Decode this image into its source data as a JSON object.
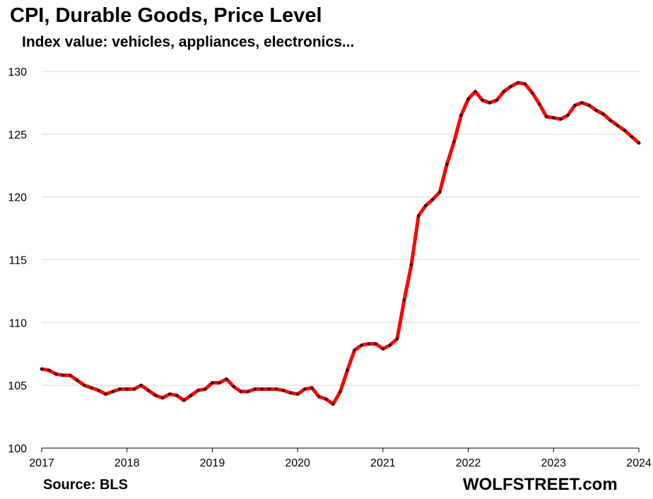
{
  "chart_data": {
    "type": "line",
    "title": "CPI, Durable Goods, Price Level",
    "subtitle": "Index value: vehicles, appliances,  electronics...",
    "source": "Source: BLS",
    "brand": "WOLFSTREET.com",
    "ylim": [
      100,
      130
    ],
    "yticks": [
      100,
      105,
      110,
      115,
      120,
      125,
      130
    ],
    "xlim": [
      2017,
      2024
    ],
    "xticks": [
      2017,
      2018,
      2019,
      2020,
      2021,
      2022,
      2023,
      2024
    ],
    "grid": true,
    "colors": {
      "line": "#ff0000",
      "marker": "#1a1a1a",
      "grid": "#d9d9d9",
      "axis": "#000000"
    },
    "series": [
      {
        "start": "2017-01",
        "values": [
          106.3,
          106.2,
          105.9,
          105.8,
          105.8,
          105.4,
          105.0,
          104.8,
          104.6,
          104.3,
          104.5,
          104.7,
          104.7,
          104.7,
          105.0,
          104.6,
          104.2,
          104.0,
          104.3,
          104.2,
          103.8,
          104.2,
          104.6,
          104.7,
          105.2,
          105.2,
          105.5,
          104.9,
          104.5,
          104.5,
          104.7,
          104.7,
          104.7,
          104.7,
          104.6,
          104.4,
          104.3,
          104.7,
          104.8,
          104.1,
          103.9,
          103.5,
          104.5,
          106.2,
          107.8,
          108.2,
          108.3,
          108.3,
          107.9,
          108.2,
          108.7,
          111.8,
          114.6,
          118.5,
          119.3,
          119.8,
          120.4,
          122.6,
          124.4,
          126.5,
          127.8,
          128.4,
          127.7,
          127.5,
          127.7,
          128.4,
          128.8,
          129.1,
          129.0,
          128.3,
          127.4,
          126.4,
          126.3,
          126.2,
          126.5,
          127.3,
          127.5,
          127.3,
          126.9,
          126.6,
          126.1,
          125.7,
          125.3,
          124.8,
          124.3
        ]
      }
    ]
  }
}
